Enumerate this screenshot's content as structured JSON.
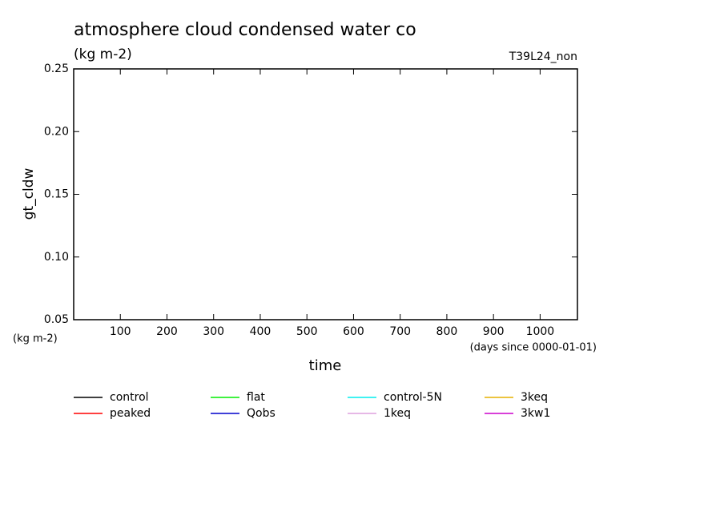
{
  "chart_data": {
    "type": "line",
    "title": "atmosphere cloud condensed water co",
    "subtitle": "(kg m-2)",
    "experiment": "T39L24_non",
    "ylabel": "gt_cldw",
    "yunits": "(kg m-2)",
    "xlabel": "time",
    "xunits": "(days since 0000-01-01)",
    "xlim": [
      0,
      1080
    ],
    "xticks": [
      100,
      200,
      300,
      400,
      500,
      600,
      700,
      800,
      900,
      1000
    ],
    "ylim": [
      0.05,
      0.25
    ],
    "yticks": [
      0.05,
      {
        "value": 0.1,
        "label": "0.10"
      },
      0.15,
      {
        "value": 0.2,
        "label": "0.20"
      },
      0.25
    ],
    "series": [
      {
        "name": "control",
        "color": "#000000",
        "values": []
      },
      {
        "name": "peaked",
        "color": "#ff0000",
        "values": []
      },
      {
        "name": "flat",
        "color": "#00ee00",
        "values": []
      },
      {
        "name": "Qobs",
        "color": "#0000cc",
        "values": []
      },
      {
        "name": "control-5N",
        "color": "#00eeee",
        "values": []
      },
      {
        "name": "1keq",
        "color": "#dda0dd",
        "values": []
      },
      {
        "name": "3keq",
        "color": "#e6b000",
        "values": []
      },
      {
        "name": "3kw1",
        "color": "#cc00cc",
        "values": []
      }
    ]
  }
}
